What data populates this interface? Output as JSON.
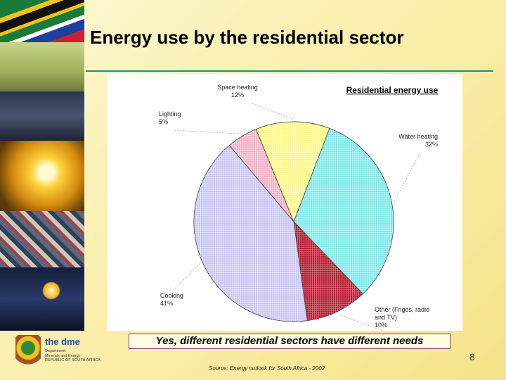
{
  "slide": {
    "title": "Energy use by the residential sector",
    "banner": "Yes, different residential sectors have different needs",
    "source": "Source: Energy outlook for South Africa - 2002",
    "slide_number": "8"
  },
  "logo": {
    "name": "the dme",
    "lines": [
      "Department:",
      "Minerals and Energy",
      "REPUBLIC OF SOUTH AFRICA"
    ]
  },
  "colors": {
    "water_heating": "#7fe9ea",
    "other": "#b3142a",
    "cooking": "#c9c6f1",
    "lighting": "#f1b1c6",
    "space_heating": "#fcf78a",
    "title_rule": "#1e8f8f"
  },
  "chart_data": {
    "type": "pie",
    "title": "Residential energy use",
    "slices": [
      {
        "label_lines": [
          "Water heating",
          "32%"
        ],
        "value": 32,
        "color_key": "water_heating"
      },
      {
        "label_lines": [
          "Other (Friges, radio",
          "and TV)",
          "10%"
        ],
        "value": 10,
        "color_key": "other"
      },
      {
        "label_lines": [
          "Cooking",
          "41%"
        ],
        "value": 41,
        "color_key": "cooking"
      },
      {
        "label_lines": [
          "Lighting",
          "5%"
        ],
        "value": 5,
        "color_key": "lighting"
      },
      {
        "label_lines": [
          "Space heating",
          "12%"
        ],
        "value": 12,
        "color_key": "space_heating"
      }
    ]
  }
}
